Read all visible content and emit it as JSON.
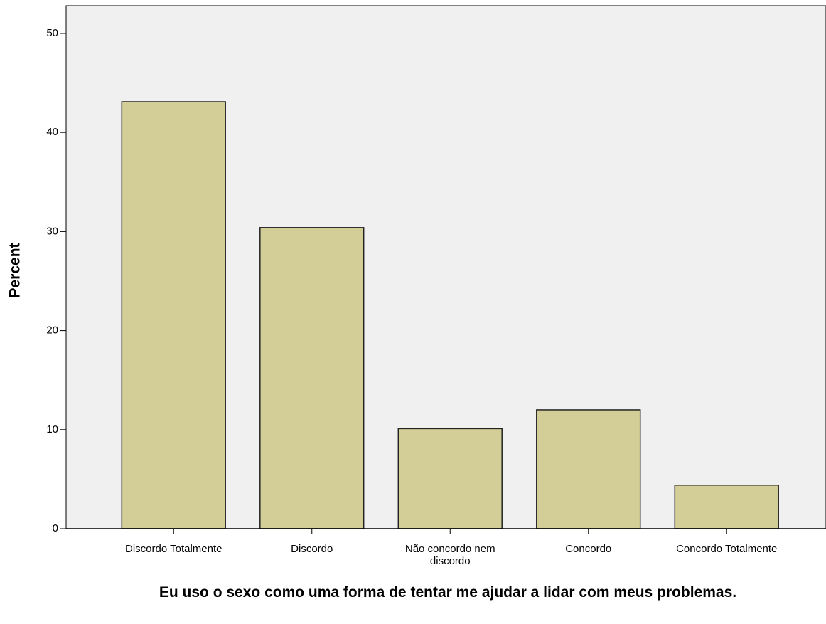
{
  "chart_data": {
    "type": "bar",
    "y_label": "Percent",
    "x_label": "Eu uso o sexo como uma forma de tentar me ajudar a lidar com meus problemas.",
    "categories": [
      "Discordo Totalmente",
      "Discordo",
      "Não concordo nem discordo",
      "Concordo",
      "Concordo Totalmente"
    ],
    "values": [
      43.1,
      30.4,
      10.1,
      12.0,
      4.4
    ],
    "color": "#d3ce97",
    "ylim": [
      0,
      52.8
    ],
    "yticks": [
      0,
      10,
      20,
      30,
      40,
      50
    ],
    "grid": false
  }
}
